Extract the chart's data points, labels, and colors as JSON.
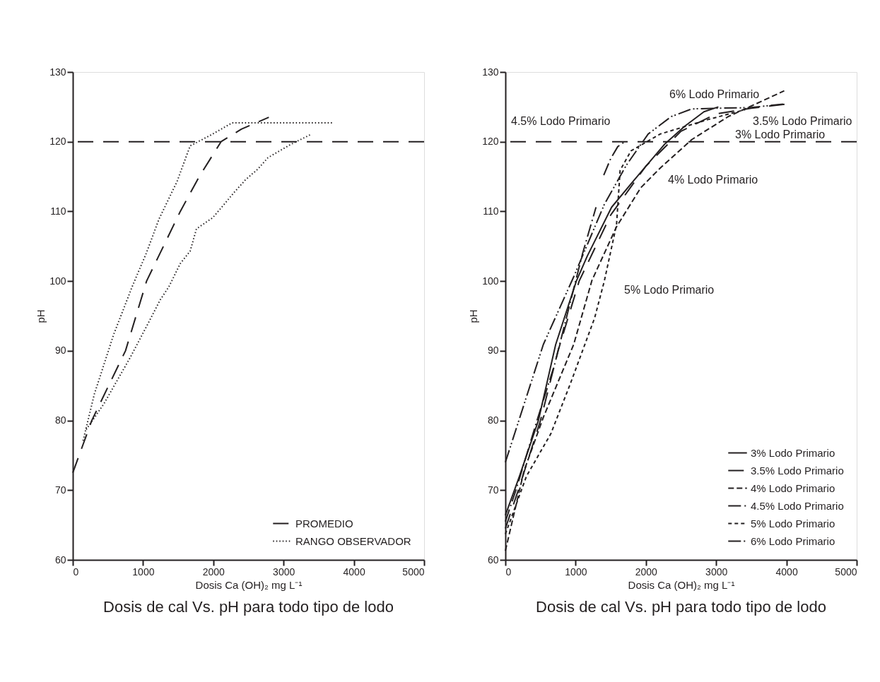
{
  "chart_data": [
    {
      "type": "line",
      "title": "Dosis de cal Vs. pH para todo tipo de lodo",
      "xlabel": "Dosis Ca (OH)₂ mg L⁻¹",
      "ylabel": "pH",
      "xlim": [
        0,
        5000
      ],
      "xticks": [
        0,
        1000,
        2000,
        3000,
        4000,
        5000
      ],
      "ylim": [
        60,
        130
      ],
      "yticks": [
        60,
        70,
        80,
        90,
        100,
        110,
        120,
        130
      ],
      "grid": false,
      "legend": "bottom right",
      "marker": "none",
      "ref_lines": [
        {
          "axis": "y",
          "value": 120,
          "line_style": "longdash"
        }
      ],
      "series": [
        {
          "name": "PROMEDIO",
          "color": "#231f20",
          "line_style": "longdash",
          "x": [
            0,
            270,
            750,
            1050,
            1530,
            1800,
            2110,
            2400,
            2790
          ],
          "values": [
            72.5,
            80,
            90,
            100,
            110,
            115,
            120,
            121.8,
            123.5
          ]
        },
        {
          "name": "RANGO OBSERVADOR",
          "color": "#231f20",
          "line_style": "dotted",
          "x": [
            146,
            307,
            584,
            845,
            1046,
            1227,
            1484,
            1670,
            1972,
            2268,
            3700
          ],
          "values": [
            77.1,
            83.8,
            92.4,
            99.2,
            104,
            108.9,
            114.3,
            119.4,
            121,
            122.7,
            122.7
          ]
        },
        {
          "color": "#231f20",
          "line_style": "dotted",
          "x": [
            191,
            443,
            815,
            1076,
            1244,
            1368,
            1529,
            1670,
            1760,
            1992,
            2153,
            2294,
            2455,
            2636,
            2777,
            3099,
            3400
          ],
          "values": [
            78.7,
            82.4,
            89,
            94,
            97.3,
            99.2,
            102.5,
            104.3,
            107.5,
            109.1,
            111,
            112.7,
            114.5,
            116.1,
            117.7,
            119.6,
            121.1
          ]
        }
      ]
    },
    {
      "type": "line",
      "title": "Dosis de cal Vs. pH para todo tipo de lodo",
      "xlabel": "Dosis Ca (OH)₂ mg L⁻¹",
      "ylabel": "pH",
      "xlim": [
        0,
        5000
      ],
      "xticks": [
        0,
        1000,
        2000,
        3000,
        4000,
        5000
      ],
      "ylim": [
        60,
        130
      ],
      "yticks": [
        60,
        70,
        80,
        90,
        100,
        110,
        120,
        130
      ],
      "grid": false,
      "legend": "bottom right",
      "marker": "none",
      "ref_lines": [
        {
          "axis": "y",
          "value": 120,
          "line_style": "longdash"
        }
      ],
      "annotations": [
        "6% Lodo Primario",
        "4.5% Lodo Primario",
        "3.5% Lodo Primario",
        "3% Lodo Primario",
        "4% Lodo Primario",
        "5% Lodo Primario"
      ],
      "series": [
        {
          "name": "3% Lodo Primario",
          "color": "#231f20",
          "line_style": "solid",
          "x": [
            0,
            200,
            470,
            716,
            1010,
            1166,
            1512,
            1858,
            2272,
            2550,
            2827,
            3032
          ],
          "values": [
            66.4,
            72,
            80,
            90.9,
            100,
            103.6,
            110.6,
            114.8,
            119.7,
            122.2,
            124.3,
            125
          ]
        },
        {
          "name": "3.5% Lodo Primario",
          "color": "#231f20",
          "line_style": "longdash",
          "x": [
            0,
            200,
            500,
            750,
            1050,
            1500,
            2000,
            2500,
            3000,
            3500,
            4000
          ],
          "values": [
            64.5,
            70.5,
            80,
            90,
            100,
            109.5,
            116.5,
            121.5,
            124,
            124.8,
            125.4
          ]
        },
        {
          "name": "4% Lodo Primario",
          "color": "#231f20",
          "line_style": "dashed",
          "x": [
            0,
            266,
            542,
            972,
            1232,
            1582,
            1927,
            2202,
            2652,
            3172,
            3969
          ],
          "values": [
            61.3,
            72.8,
            80.5,
            90.9,
            100.1,
            107.8,
            113.4,
            116.2,
            120.3,
            123.6,
            127.3
          ]
        },
        {
          "name": "4.5% Lodo Primario",
          "color": "#231f20",
          "line_style": "dashdot",
          "x": [
            0,
            150,
            450,
            700,
            900,
            1100,
            1290,
            1350,
            1400,
            1500,
            1600,
            1700
          ],
          "values": [
            65.5,
            70,
            80,
            88,
            96,
            104,
            110.6,
            null,
            115.2,
            117.6,
            119.3,
            120
          ]
        },
        {
          "name": "5% Lodo Primario",
          "color": "#231f20",
          "line_style": "shortdash",
          "x": [
            0,
            300,
            647,
            922,
            1270,
            1408,
            1582,
            1633,
            1789,
            2202,
            2892,
            3412
          ],
          "values": [
            63.7,
            72,
            78.1,
            85.2,
            94.7,
            100,
            108.1,
            115.9,
            118.7,
            121.1,
            123.2,
            124.6
          ]
        },
        {
          "name": "6% Lodo Primario",
          "color": "#231f20",
          "line_style": "dashdotdot",
          "x": [
            0,
            540,
            976,
            1408,
            1720,
            2032,
            2360,
            2652,
            3000,
            3500,
            3953
          ],
          "values": [
            74,
            90.9,
            100.7,
            111,
            116.6,
            121.1,
            123.6,
            124.7,
            124.8,
            124.9,
            125.4
          ]
        }
      ]
    }
  ]
}
